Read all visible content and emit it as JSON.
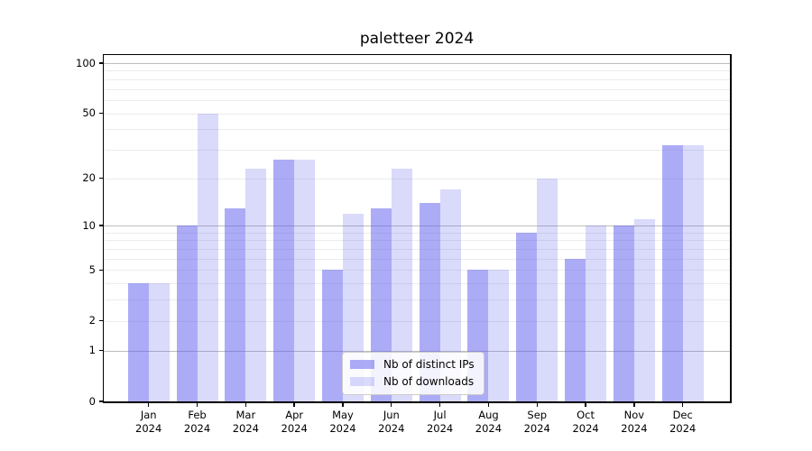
{
  "chart_data": {
    "type": "bar",
    "title": "paletteer 2024",
    "categories": [
      "Jan",
      "Feb",
      "Mar",
      "Apr",
      "May",
      "Jun",
      "Jul",
      "Aug",
      "Sep",
      "Oct",
      "Nov",
      "Dec"
    ],
    "x_year_label": "2024",
    "series": [
      {
        "name": "Nb of distinct IPs",
        "color": "rgba(95,95,238,0.52)",
        "values": [
          4,
          10,
          13,
          26,
          5,
          13,
          14,
          5,
          9,
          6,
          10,
          32
        ]
      },
      {
        "name": "Nb of downloads",
        "color": "rgba(95,95,238,0.23)",
        "values": [
          4,
          50,
          23,
          26,
          12,
          23,
          17,
          5,
          20,
          10,
          11,
          32
        ]
      }
    ],
    "yscale": "log1p",
    "ylim": [
      0,
      112
    ],
    "y_tick_labels": [
      "100",
      "50",
      "20",
      "10",
      "5",
      "2",
      "1",
      "0"
    ],
    "y_tick_values": [
      100,
      50,
      20,
      10,
      5,
      2,
      1,
      0
    ],
    "y_major_gridlines": [
      1,
      10,
      100
    ],
    "y_minor_gridlines": [
      2,
      3,
      4,
      5,
      6,
      7,
      8,
      9,
      20,
      30,
      40,
      50,
      60,
      70,
      80,
      90
    ],
    "grid": true,
    "legend_position": "lower center",
    "colors": {
      "axis": "#000000",
      "grid_major": "#bdbdbd",
      "grid_minor": "#ececec"
    }
  }
}
